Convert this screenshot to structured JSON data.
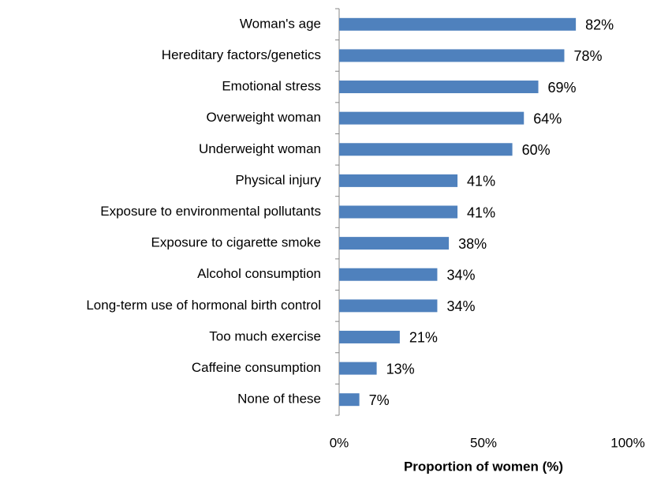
{
  "chart_data": {
    "type": "bar",
    "orientation": "horizontal",
    "categories": [
      "Woman's age",
      "Hereditary factors/genetics",
      "Emotional stress",
      "Overweight woman",
      "Underweight woman",
      "Physical injury",
      "Exposure to environmental pollutants",
      "Exposure to cigarette smoke",
      "Alcohol consumption",
      "Long-term use of hormonal birth control",
      "Too much exercise",
      "Caffeine consumption",
      "None of these"
    ],
    "values": [
      82,
      78,
      69,
      64,
      60,
      41,
      41,
      38,
      34,
      34,
      21,
      13,
      7
    ],
    "value_labels": [
      "82%",
      "78%",
      "69%",
      "64%",
      "60%",
      "41%",
      "41%",
      "38%",
      "34%",
      "34%",
      "21%",
      "13%",
      "7%"
    ],
    "color": "#4f81bd",
    "xlabel": "Proportion of women (%)",
    "xlim": [
      0,
      100
    ],
    "xticks": [
      {
        "value": 0,
        "label": "0%"
      },
      {
        "value": 50,
        "label": "50%"
      },
      {
        "value": 100,
        "label": "100%"
      }
    ],
    "grid": false
  }
}
